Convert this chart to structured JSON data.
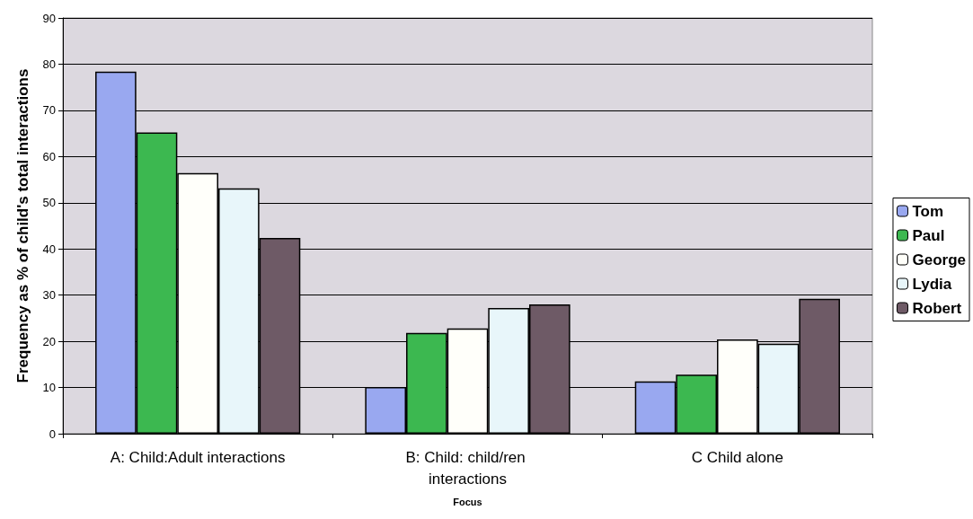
{
  "chart_data": {
    "type": "bar",
    "xlabel": "Focus",
    "ylabel": "Frequency as % of child's total interactions",
    "categories": [
      "A: Child:Adult interactions",
      "B: Child: child/ren interactions",
      "C Child alone"
    ],
    "series": [
      {
        "name": "Tom",
        "color": "#99a8f0",
        "values": [
          78.4,
          10.1,
          11.3
        ]
      },
      {
        "name": "Paul",
        "color": "#3cb850",
        "values": [
          65.2,
          21.8,
          12.8
        ]
      },
      {
        "name": "George",
        "color": "#fffffa",
        "values": [
          56.4,
          22.8,
          20.4
        ]
      },
      {
        "name": "Lydia",
        "color": "#e8f6fa",
        "values": [
          53.1,
          27.2,
          19.5
        ]
      },
      {
        "name": "Robert",
        "color": "#6e5a66",
        "values": [
          42.4,
          28.0,
          29.2
        ]
      }
    ],
    "ylim": [
      0,
      90
    ],
    "yticks": [
      0,
      10,
      20,
      30,
      40,
      50,
      60,
      70,
      80,
      90
    ],
    "grid": "y",
    "legend": "right"
  }
}
